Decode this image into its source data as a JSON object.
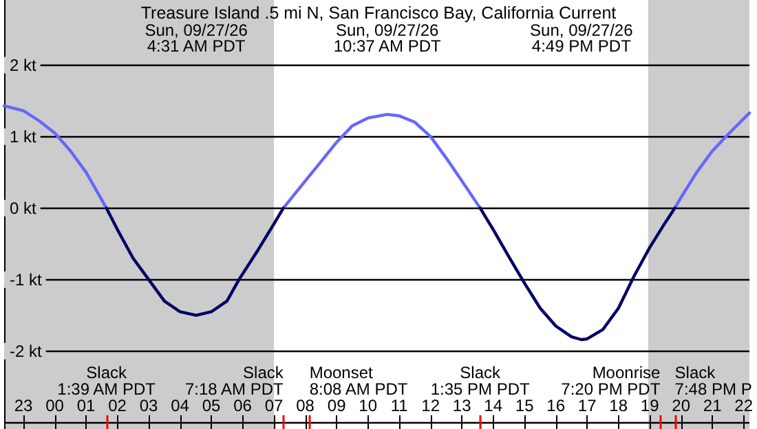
{
  "chart_data": {
    "type": "line",
    "title": "Treasure Island .5 mi N, San Francisco Bay, California Current",
    "xlim": [
      "--09-26T22:23",
      "--09-27T22:11"
    ],
    "xticks": [
      {
        "value": "--09-26T23:00",
        "label": "23"
      },
      {
        "value": "--09-27T00:00",
        "label": "00"
      },
      {
        "value": "--09-27T01:00",
        "label": "01"
      },
      {
        "value": "--09-27T02:00",
        "label": "02"
      },
      {
        "value": "--09-27T03:00",
        "label": "03"
      },
      {
        "value": "--09-27T04:00",
        "label": "04"
      },
      {
        "value": "--09-27T05:00",
        "label": "05"
      },
      {
        "value": "--09-27T06:00",
        "label": "06"
      },
      {
        "value": "--09-27T07:00",
        "label": "07"
      },
      {
        "value": "--09-27T08:00",
        "label": "08"
      },
      {
        "value": "--09-27T09:00",
        "label": "09"
      },
      {
        "value": "--09-27T10:00",
        "label": "10"
      },
      {
        "value": "--09-27T11:00",
        "label": "11"
      },
      {
        "value": "--09-27T12:00",
        "label": "12"
      },
      {
        "value": "--09-27T13:00",
        "label": "13"
      },
      {
        "value": "--09-27T14:00",
        "label": "14"
      },
      {
        "value": "--09-27T15:00",
        "label": "15"
      },
      {
        "value": "--09-27T16:00",
        "label": "16"
      },
      {
        "value": "--09-27T17:00",
        "label": "17"
      },
      {
        "value": "--09-27T18:00",
        "label": "18"
      },
      {
        "value": "--09-27T19:00",
        "label": "19"
      },
      {
        "value": "--09-27T20:00",
        "label": "20"
      },
      {
        "value": "--09-27T21:00",
        "label": "21"
      },
      {
        "value": "--09-27T22:00",
        "label": "22"
      }
    ],
    "x2lim": [
      "--09-26T22:23",
      "--09-27T22:11"
    ],
    "x2ticks": [
      {
        "value": "--09-27T04:31",
        "label": "Sun, 09/27/26\n4:31 AM PDT"
      },
      {
        "value": "--09-27T10:37",
        "label": "Sun, 09/27/26\n10:37 AM PDT"
      },
      {
        "value": "--09-27T16:49",
        "label": "Sun, 09/27/26\n4:49 PM PDT"
      }
    ],
    "ylim": [
      -3.09,
      2.91
    ],
    "yticks": [
      {
        "value": -2,
        "label": "-2 kt"
      },
      {
        "value": -1,
        "label": "-1 kt"
      },
      {
        "value": 0,
        "label": "0 kt"
      },
      {
        "value": 1,
        "label": "1 kt"
      },
      {
        "value": 2,
        "label": "2 kt"
      }
    ],
    "grid": "y",
    "series": [
      {
        "color": "#6666ff",
        "x": [
          "--09-26T22:23",
          "--09-26T23:00",
          "--09-26T23:30",
          "--09-27T00:00",
          "--09-27T00:30",
          "--09-27T01:00",
          "--09-27T01:39",
          "--09-27T04:30",
          "--09-27T07:18",
          "--09-27T08:00",
          "--09-27T08:30",
          "--09-27T09:00",
          "--09-27T09:30",
          "--09-27T10:00",
          "--09-27T10:37",
          "--09-27T11:00",
          "--09-27T11:30",
          "--09-27T12:00",
          "--09-27T12:30",
          "--09-27T13:00",
          "--09-27T13:35",
          "--09-27T16:30",
          "--09-27T19:48",
          "--09-27T20:00",
          "--09-27T20:30",
          "--09-27T21:00",
          "--09-27T21:30",
          "--09-27T22:00",
          "--09-27T22:11"
        ],
        "values": [
          1.43,
          1.36,
          1.22,
          1.05,
          0.8,
          0.5,
          0,
          null,
          0,
          0.38,
          0.65,
          0.92,
          1.15,
          1.26,
          1.31,
          1.29,
          1.2,
          1.0,
          0.7,
          0.38,
          0,
          null,
          0,
          0.15,
          0.5,
          0.8,
          1.03,
          1.25,
          1.33
        ]
      },
      {
        "color": "#000066",
        "x": [
          "--09-27T01:39",
          "--09-27T02:00",
          "--09-27T02:30",
          "--09-27T03:00",
          "--09-27T03:30",
          "--09-27T04:00",
          "--09-27T04:31",
          "--09-27T05:00",
          "--09-27T05:30",
          "--09-27T05:53",
          "--09-27T06:30",
          "--09-27T07:00",
          "--09-27T07:18",
          "--09-27T10:30",
          "--09-27T13:35",
          "--09-27T14:00",
          "--09-27T14:30",
          "--09-27T15:00",
          "--09-27T15:30",
          "--09-27T16:00",
          "--09-27T16:30",
          "--09-27T16:49",
          "--09-27T17:00",
          "--09-27T17:30",
          "--09-27T18:00",
          "--09-27T18:30",
          "--09-27T19:00",
          "--09-27T19:30",
          "--09-27T19:48"
        ],
        "values": [
          0,
          -0.3,
          -0.7,
          -1.0,
          -1.3,
          -1.45,
          -1.5,
          -1.45,
          -1.3,
          -1.0,
          -0.58,
          -0.22,
          0,
          null,
          0,
          -0.3,
          -0.68,
          -1.05,
          -1.4,
          -1.65,
          -1.8,
          -1.84,
          -1.83,
          -1.7,
          -1.4,
          -0.95,
          -0.55,
          -0.2,
          0
        ]
      }
    ],
    "bands": [
      {
        "axis": "x",
        "from": "--09-26T22:23",
        "to": "--09-27T07:00",
        "color": "#cccccc"
      },
      {
        "axis": "x",
        "from": "--09-27T18:57",
        "to": "--09-27T22:11",
        "color": "#cccccc"
      }
    ],
    "ref_lines": [
      {
        "axis": "x",
        "value": "--09-27T01:39",
        "label": "Slack\n1:39 AM PDT",
        "color": "#ff0000"
      },
      {
        "axis": "x",
        "value": "--09-27T07:18",
        "label": "Slack\n7:18 AM PDT",
        "color": "#ff0000"
      },
      {
        "axis": "x",
        "value": "--09-27T08:08",
        "label": "Moonset\n8:08 AM PDT",
        "color": "#ff0000"
      },
      {
        "axis": "x",
        "value": "--09-27T13:35",
        "label": "Slack\n1:35 PM PDT",
        "color": "#ff0000"
      },
      {
        "axis": "x",
        "value": "--09-27T19:20",
        "label": "Moonrise\n7:20 PM PDT",
        "color": "#ff0000"
      },
      {
        "axis": "x",
        "value": "--09-27T19:48",
        "label": "Slack\n7:48 PM P",
        "color": "#ff0000"
      }
    ]
  }
}
